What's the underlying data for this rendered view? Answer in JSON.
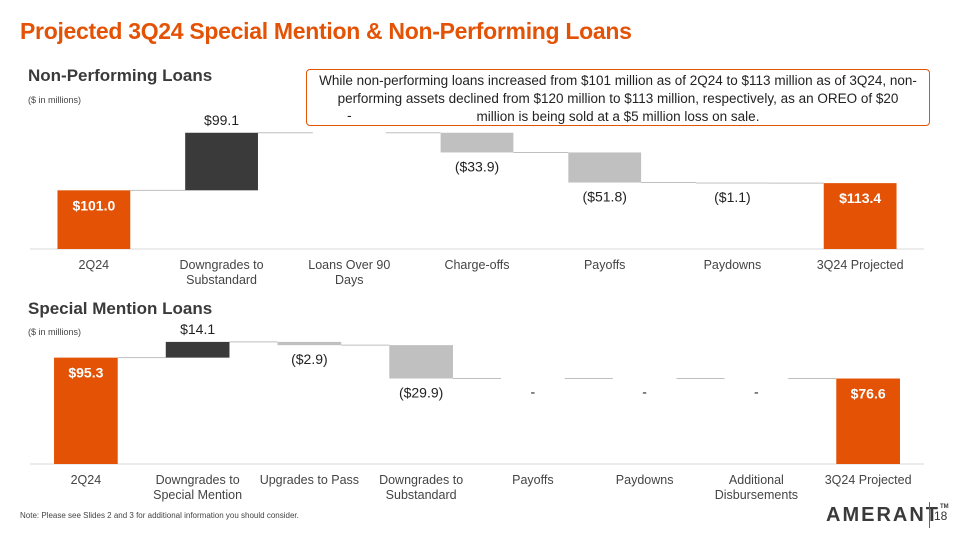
{
  "title": "Projected 3Q24 Special Mention & Non-Performing Loans",
  "callout": "While non-performing loans increased from $101 million as of 2Q24 to $113 million as of 3Q24, non-performing assets declined from $120 million to $113 million, respectively, as an OREO of $20 million is being sold at a $5 million loss on sale.",
  "footnote": "Note: Please see Slides 2 and 3 for additional information you should consider.",
  "logo": "AMERANT",
  "logo_tm": "TM",
  "page_number": "18",
  "colors": {
    "accent": "#e35205",
    "increase": "#3a3a3a",
    "decrease": "#c0c0c0",
    "connector": "#bfbfbf"
  },
  "chart_data": [
    {
      "type": "bar",
      "subtype": "waterfall",
      "title": "Non-Performing Loans",
      "subtitle": "($ in millions)",
      "categories": [
        "2Q24",
        "Downgrades to Substandard",
        "Loans Over 90 Days",
        "Charge-offs",
        "Payoffs",
        "Paydowns",
        "3Q24 Projected"
      ],
      "values": [
        101.0,
        99.1,
        0,
        -33.9,
        -51.8,
        -1.1,
        113.4
      ],
      "kinds": [
        "total",
        "increase",
        "zero",
        "decrease",
        "decrease",
        "decrease",
        "total"
      ],
      "data_labels": [
        "$101.0",
        "$99.1",
        "-",
        "($33.9)",
        "($51.8)",
        "($1.1)",
        "$113.4"
      ],
      "ylim": [
        0,
        210
      ]
    },
    {
      "type": "bar",
      "subtype": "waterfall",
      "title": "Special Mention Loans",
      "subtitle": "($ in millions)",
      "categories": [
        "2Q24",
        "Downgrades to Special Mention",
        "Upgrades to Pass",
        "Downgrades to Substandard",
        "Payoffs",
        "Paydowns",
        "Additional Disbursements",
        "3Q24 Projected"
      ],
      "values": [
        95.3,
        14.1,
        -2.9,
        -29.9,
        0,
        0,
        0,
        76.6
      ],
      "kinds": [
        "total",
        "increase",
        "decrease",
        "decrease",
        "zero",
        "zero",
        "zero",
        "total"
      ],
      "data_labels": [
        "$95.3",
        "$14.1",
        "($2.9)",
        "($29.9)",
        "-",
        "-",
        "-",
        "$76.6"
      ],
      "ylim": [
        0,
        112
      ]
    }
  ]
}
